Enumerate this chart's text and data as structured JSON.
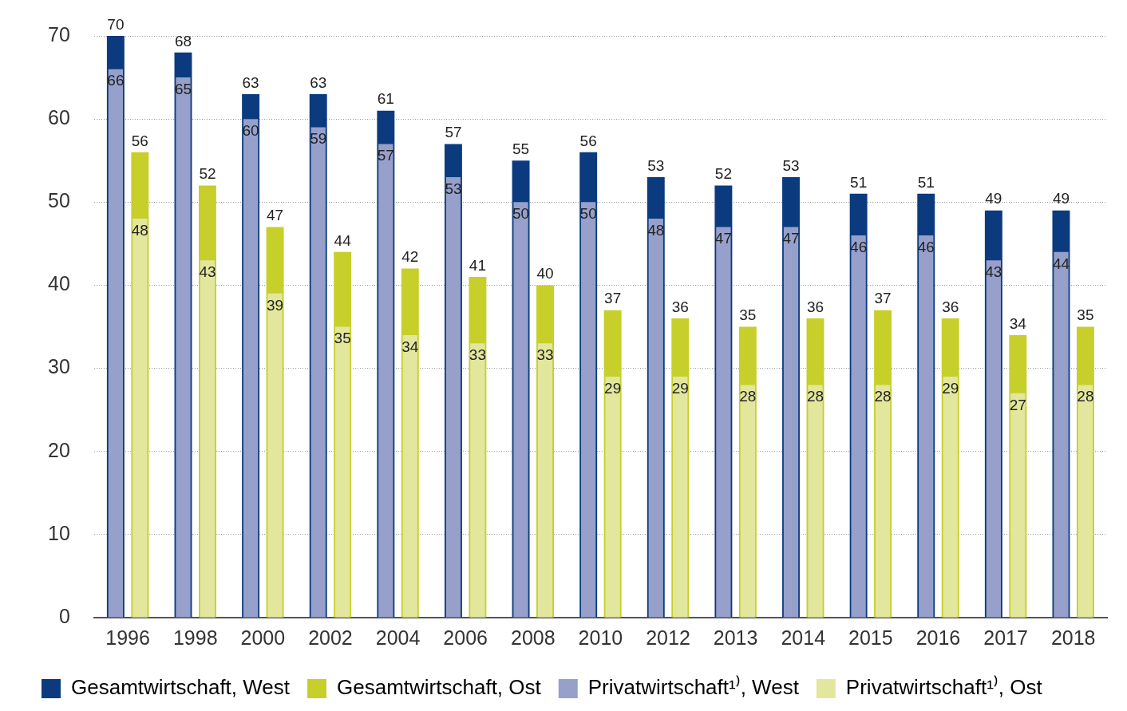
{
  "chart_data": {
    "type": "bar",
    "data_labels": true,
    "categories": [
      "1996",
      "1998",
      "2000",
      "2002",
      "2004",
      "2006",
      "2008",
      "2010",
      "2012",
      "2013",
      "2014",
      "2015",
      "2016",
      "2017",
      "2018"
    ],
    "series": [
      {
        "name": "Gesamtwirtschaft, West",
        "color": "#0b3b7e",
        "values": [
          70,
          68,
          63,
          63,
          61,
          57,
          55,
          56,
          53,
          52,
          53,
          51,
          51,
          49,
          49
        ]
      },
      {
        "name": "Privatwirtschaft¹⁾, West",
        "color": "#96a0cb",
        "values": [
          66,
          65,
          60,
          59,
          57,
          53,
          50,
          50,
          48,
          47,
          47,
          46,
          46,
          43,
          44
        ]
      },
      {
        "name": "Gesamtwirtschaft, Ost",
        "color": "#c7cf2b",
        "values": [
          56,
          52,
          47,
          44,
          42,
          41,
          40,
          37,
          36,
          35,
          36,
          37,
          36,
          34,
          35
        ]
      },
      {
        "name": "Privatwirtschaft¹⁾, Ost",
        "color": "#e3e79d",
        "values": [
          48,
          43,
          39,
          35,
          34,
          33,
          33,
          29,
          29,
          28,
          28,
          28,
          29,
          27,
          28
        ]
      }
    ],
    "ylim": [
      0,
      70
    ],
    "yticks": [
      0,
      10,
      20,
      30,
      40,
      50,
      60,
      70
    ],
    "grid": "y",
    "legend": "bottom"
  }
}
